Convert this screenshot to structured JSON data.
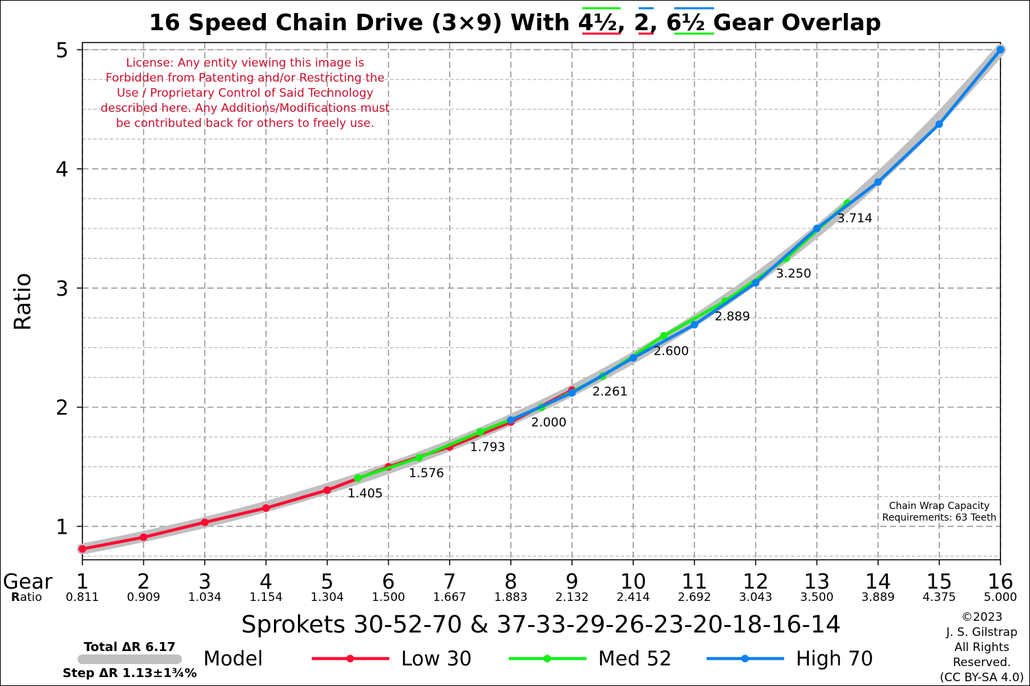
{
  "title_parts": {
    "prefix": "16 Speed Chain Drive (3×9) With ",
    "overlap_a": "4½",
    "sep1": ", ",
    "overlap_b": "2",
    "sep2": ", ",
    "overlap_c": "6½",
    "suffix": " Gear Overlap"
  },
  "license_lines": [
    "License: Any entity viewing this image is",
    "Forbidden from Patenting and/or Restricting the",
    "Use / Proprietary Control of Said Technology",
    "described here. Any Additions/Modifications must",
    "be contributed back for others to freely use."
  ],
  "chain_wrap_lines": [
    "Chain Wrap Capacity",
    "Requirements: 63 Teeth"
  ],
  "gear_label": "Gear",
  "ratio_row_label_bold": "R",
  "ratio_row_label_rest": "atio",
  "stats": {
    "total": "Total ΔR 6.17",
    "step": "Step ΔR 1.13±1¾%"
  },
  "copyright_lines": [
    "©2023",
    "J. S. Gilstrap",
    "All Rights",
    "Reserved.",
    "(CC BY-SA 4.0)"
  ],
  "colors": {
    "low": "#ff0a32",
    "med": "#14f014",
    "high": "#0a82f0",
    "model": "#c0c0c0"
  },
  "chart_data": {
    "type": "line",
    "title": "16 Speed Chain Drive (3×9) With 4½, 2, 6½ Gear Overlap",
    "xlabel": "Sprokets  30-52-70  &  37-33-29-26-23-20-18-16-14",
    "ylabel": "Ratio",
    "xlim": [
      1,
      16
    ],
    "ylim": [
      0.72,
      5.06
    ],
    "yticks": [
      1,
      2,
      3,
      4,
      5
    ],
    "yminor": [
      1.25,
      1.5,
      1.75,
      2.25,
      2.5,
      2.75,
      3.25,
      3.5,
      3.75,
      4.25,
      4.5,
      4.75
    ],
    "grid": true,
    "legend_position": "bottom",
    "gear_ticks": [
      1,
      2,
      3,
      4,
      5,
      6,
      7,
      8,
      9,
      10,
      11,
      12,
      13,
      14,
      15,
      16
    ],
    "gear_ratios": [
      "0.811",
      "0.909",
      "1.034",
      "1.154",
      "1.304",
      "1.500",
      "1.667",
      "1.883",
      "2.132",
      "2.414",
      "2.692",
      "3.043",
      "3.500",
      "3.889",
      "4.375",
      "5.000"
    ],
    "model": {
      "name": "Model",
      "x": [
        1,
        16
      ],
      "y0": 0.811,
      "y1": 5.0
    },
    "series": [
      {
        "name": "Low 30",
        "color": "#ff0a32",
        "x": [
          1,
          2,
          3,
          4,
          5,
          6,
          7,
          8,
          9
        ],
        "y": [
          0.811,
          0.909,
          1.034,
          1.154,
          1.304,
          1.5,
          1.667,
          1.875,
          2.143
        ]
      },
      {
        "name": "Med 52",
        "color": "#14f014",
        "x": [
          5.5,
          6.5,
          7.5,
          8.5,
          9.5,
          10.5,
          11.5,
          12.5,
          13.5
        ],
        "y": [
          1.405,
          1.576,
          1.793,
          2.0,
          2.261,
          2.6,
          2.889,
          3.25,
          3.714
        ]
      },
      {
        "name": "High 70",
        "color": "#0a82f0",
        "x": [
          8,
          9,
          10,
          11,
          12,
          13,
          14,
          15,
          16
        ],
        "y": [
          1.892,
          2.121,
          2.414,
          2.692,
          3.043,
          3.5,
          3.889,
          4.375,
          5.0
        ]
      }
    ],
    "annotations": [
      "1.405",
      "1.576",
      "1.793",
      "2.000",
      "2.261",
      "2.600",
      "2.889",
      "3.250",
      "3.714"
    ]
  }
}
